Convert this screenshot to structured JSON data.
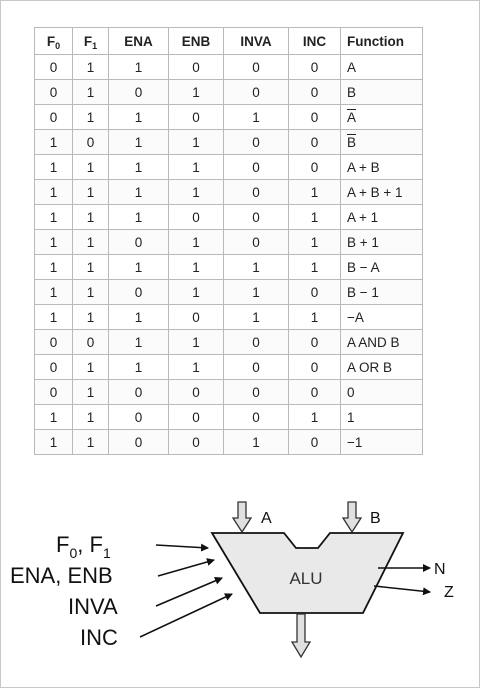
{
  "table": {
    "headers": [
      {
        "base": "F",
        "sub": "0"
      },
      {
        "base": "F",
        "sub": "1"
      },
      {
        "base": "ENA",
        "sub": ""
      },
      {
        "base": "ENB",
        "sub": ""
      },
      {
        "base": "INVA",
        "sub": ""
      },
      {
        "base": "INC",
        "sub": ""
      },
      {
        "base": "Function",
        "sub": ""
      }
    ],
    "rows": [
      {
        "f0": "0",
        "f1": "1",
        "ena": "1",
        "enb": "0",
        "inva": "0",
        "inc": "0",
        "fn": "A",
        "over": false
      },
      {
        "f0": "0",
        "f1": "1",
        "ena": "0",
        "enb": "1",
        "inva": "0",
        "inc": "0",
        "fn": "B",
        "over": false
      },
      {
        "f0": "0",
        "f1": "1",
        "ena": "1",
        "enb": "0",
        "inva": "1",
        "inc": "0",
        "fn": "A",
        "over": true
      },
      {
        "f0": "1",
        "f1": "0",
        "ena": "1",
        "enb": "1",
        "inva": "0",
        "inc": "0",
        "fn": "B",
        "over": true
      },
      {
        "f0": "1",
        "f1": "1",
        "ena": "1",
        "enb": "1",
        "inva": "0",
        "inc": "0",
        "fn": "A + B",
        "over": false
      },
      {
        "f0": "1",
        "f1": "1",
        "ena": "1",
        "enb": "1",
        "inva": "0",
        "inc": "1",
        "fn": "A + B + 1",
        "over": false
      },
      {
        "f0": "1",
        "f1": "1",
        "ena": "1",
        "enb": "0",
        "inva": "0",
        "inc": "1",
        "fn": "A + 1",
        "over": false
      },
      {
        "f0": "1",
        "f1": "1",
        "ena": "0",
        "enb": "1",
        "inva": "0",
        "inc": "1",
        "fn": "B + 1",
        "over": false
      },
      {
        "f0": "1",
        "f1": "1",
        "ena": "1",
        "enb": "1",
        "inva": "1",
        "inc": "1",
        "fn": "B − A",
        "over": false
      },
      {
        "f0": "1",
        "f1": "1",
        "ena": "0",
        "enb": "1",
        "inva": "1",
        "inc": "0",
        "fn": "B − 1",
        "over": false
      },
      {
        "f0": "1",
        "f1": "1",
        "ena": "1",
        "enb": "0",
        "inva": "1",
        "inc": "1",
        "fn": "−A",
        "over": false
      },
      {
        "f0": "0",
        "f1": "0",
        "ena": "1",
        "enb": "1",
        "inva": "0",
        "inc": "0",
        "fn": "A AND B",
        "over": false
      },
      {
        "f0": "0",
        "f1": "1",
        "ena": "1",
        "enb": "1",
        "inva": "0",
        "inc": "0",
        "fn": "A OR B",
        "over": false
      },
      {
        "f0": "0",
        "f1": "1",
        "ena": "0",
        "enb": "0",
        "inva": "0",
        "inc": "0",
        "fn": "0",
        "over": false
      },
      {
        "f0": "1",
        "f1": "1",
        "ena": "0",
        "enb": "0",
        "inva": "0",
        "inc": "1",
        "fn": "1",
        "over": false
      },
      {
        "f0": "1",
        "f1": "1",
        "ena": "0",
        "enb": "0",
        "inva": "1",
        "inc": "0",
        "fn": "−1",
        "over": false
      }
    ]
  },
  "diagram": {
    "alu_label": "ALU",
    "input_a": "A",
    "input_b": "B",
    "output_n": "N",
    "output_z": "Z",
    "control_f_base": "F",
    "control_f_sub0": "0",
    "control_f_sep": ", ",
    "control_f_sub1": "1",
    "control_en": "ENA, ENB",
    "control_inva": "INVA",
    "control_inc": "INC"
  }
}
